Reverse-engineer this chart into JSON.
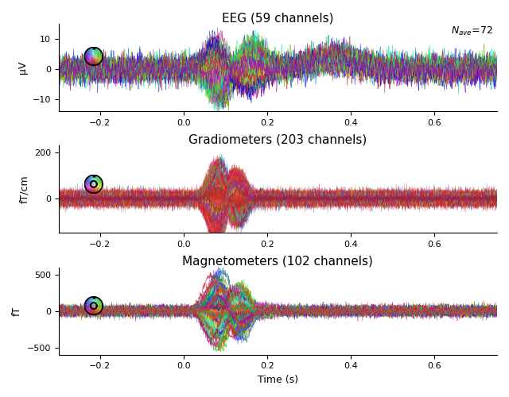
{
  "title_eeg": "EEG (59 channels)",
  "title_grad": "Gradiometers (203 channels)",
  "title_mag": "Magnetometers (102 channels)",
  "nave_text": "N_{ave}=72",
  "ylabel_eeg": "μV",
  "ylabel_grad": "fT/cm",
  "ylabel_mag": "fT",
  "xlabel": "Time (s)",
  "ylim_eeg": [
    -14,
    15
  ],
  "ylim_grad": [
    -150,
    230
  ],
  "ylim_mag": [
    -600,
    600
  ],
  "yticks_eeg": [
    -10,
    0,
    10
  ],
  "yticks_grad": [
    0,
    200
  ],
  "yticks_mag": [
    -500,
    0,
    500
  ],
  "xmin": -0.299,
  "xmax": 0.75,
  "n_eeg": 59,
  "n_grad": 203,
  "n_mag": 102,
  "t_event": 0.083,
  "background_color": "#ffffff"
}
